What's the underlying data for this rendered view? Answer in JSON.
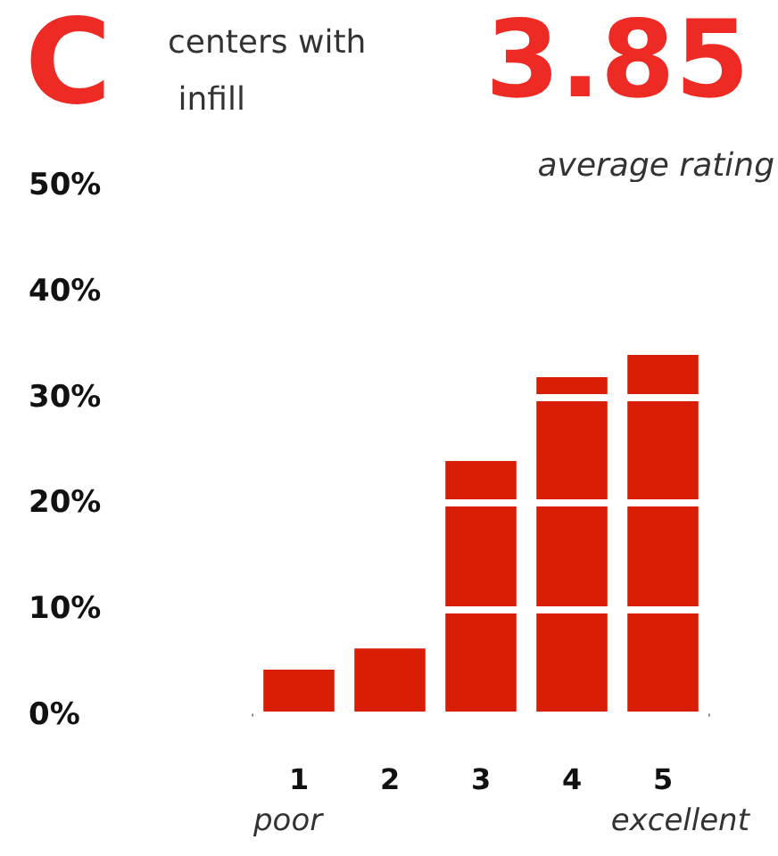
{
  "chart_data": {
    "type": "bar",
    "title": "C",
    "subtitle": "centers with infill",
    "annotations": [
      "3.85",
      "average rating",
      "poor",
      "excellent"
    ],
    "categories": [
      "1",
      "2",
      "3",
      "4",
      "5"
    ],
    "values": [
      4.3,
      6.3,
      24,
      31.9,
      34
    ],
    "color": "#d91e05",
    "ylim": [
      0,
      50
    ],
    "yticks": [
      {
        "value": 0,
        "label": "0%"
      },
      {
        "value": 10,
        "label": "10%"
      },
      {
        "value": 20,
        "label": "20%"
      },
      {
        "value": 30,
        "label": "30%"
      },
      {
        "value": 40,
        "label": "40%"
      },
      {
        "value": 50,
        "label": "50%"
      }
    ],
    "grid": "y"
  }
}
